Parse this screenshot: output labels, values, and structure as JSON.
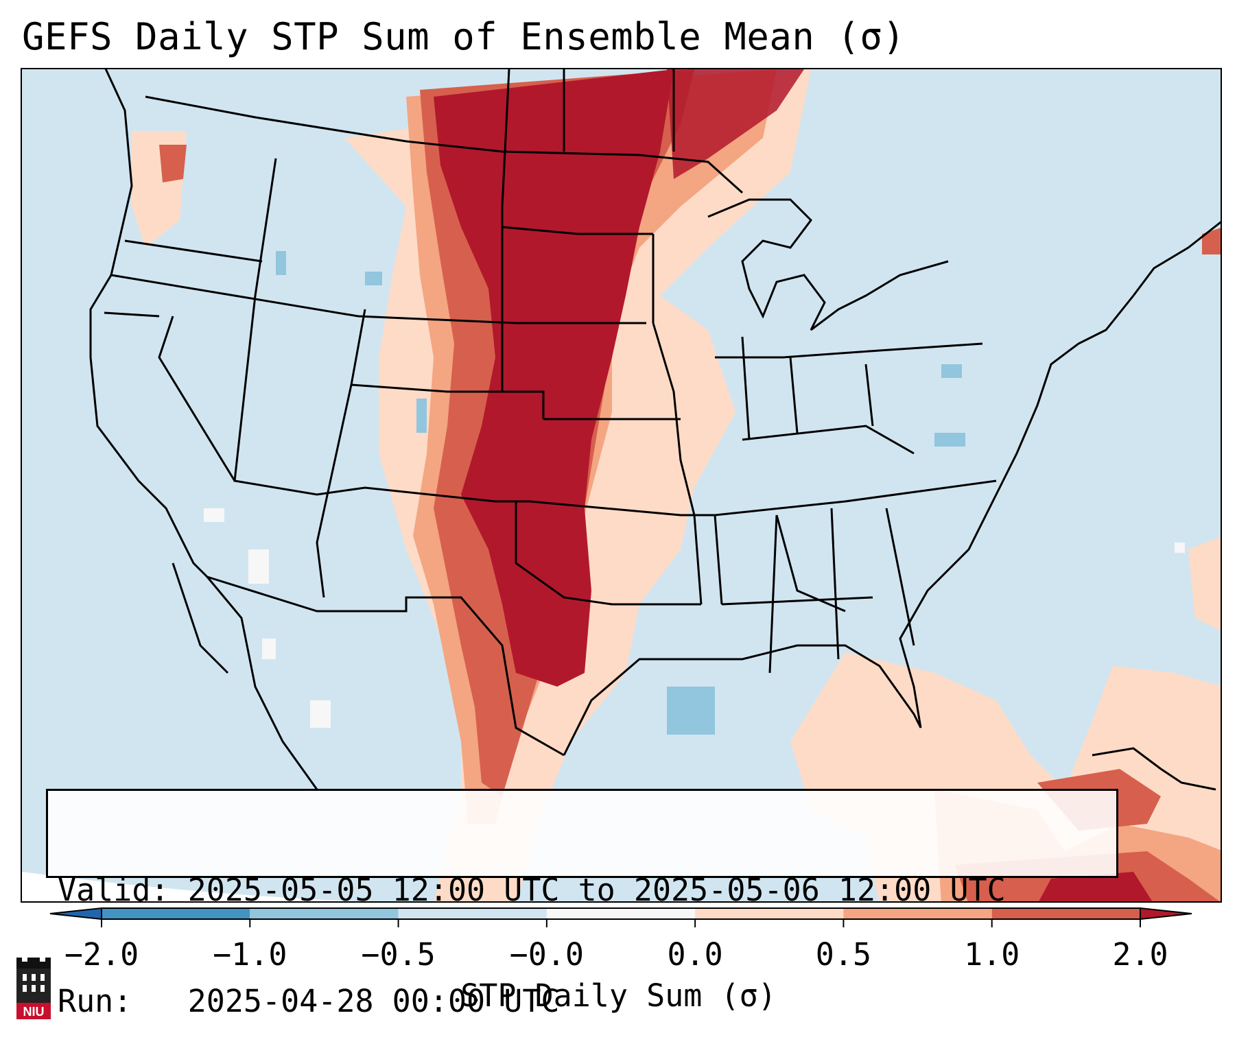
{
  "title": "GEFS Daily STP Sum of Ensemble Mean (σ)",
  "info": {
    "valid_label": "Valid:",
    "valid_value": "2025-05-05 12:00 UTC to 2025-05-06 12:00 UTC",
    "run_label": "Run:  ",
    "run_value": "2025-04-28 00:00 UTC"
  },
  "colorbar": {
    "label": "STP Daily Sum (σ)",
    "ticks": [
      "−2.0",
      "−1.0",
      "−0.5",
      "−0.0",
      "0.0",
      "0.5",
      "1.0",
      "2.0"
    ],
    "colors": [
      "#4393c3",
      "#92c5de",
      "#d1e5f0",
      "#f7f7f7",
      "#fddbc7",
      "#f4a582",
      "#d6604d",
      "#b2182b"
    ],
    "extend": "both",
    "under_color": "#2166ac",
    "over_color": "#b2182b"
  },
  "map": {
    "region": "Contiguous United States",
    "field": "STP daily sum anomaly (σ)",
    "background_color": "#d1e5f0",
    "outside_color": "#ffffff"
  },
  "logo": {
    "text": "NIU"
  }
}
